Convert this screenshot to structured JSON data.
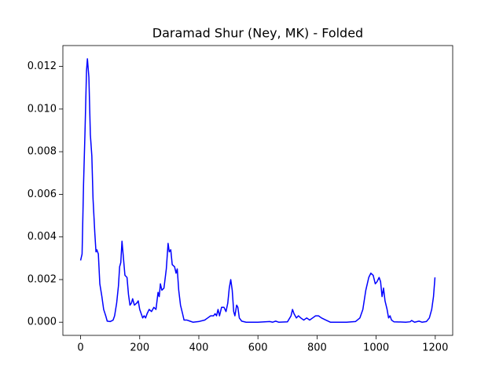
{
  "chart_data": {
    "type": "line",
    "title": "Daramad Shur (Ney, MK) - Folded",
    "color": "#0000ff",
    "x": [
      0,
      5,
      10,
      15,
      20,
      23,
      28,
      33,
      38,
      42,
      48,
      52,
      55,
      60,
      65,
      72,
      78,
      85,
      90,
      100,
      110,
      115,
      122,
      128,
      132,
      136,
      140,
      145,
      150,
      157,
      162,
      167,
      172,
      176,
      182,
      190,
      195,
      200,
      205,
      210,
      215,
      220,
      225,
      232,
      240,
      248,
      255,
      262,
      266,
      270,
      275,
      282,
      290,
      296,
      300,
      305,
      310,
      318,
      323,
      327,
      332,
      338,
      345,
      350,
      360,
      370,
      380,
      400,
      420,
      430,
      440,
      450,
      455,
      460,
      465,
      470,
      477,
      485,
      492,
      498,
      503,
      508,
      513,
      518,
      522,
      528,
      532,
      537,
      545,
      560,
      600,
      640,
      650,
      660,
      670,
      700,
      712,
      717,
      722,
      730,
      737,
      745,
      755,
      765,
      775,
      785,
      795,
      805,
      815,
      830,
      845,
      900,
      930,
      945,
      955,
      965,
      975,
      982,
      990,
      997,
      1003,
      1010,
      1015,
      1020,
      1025,
      1030,
      1037,
      1042,
      1047,
      1052,
      1060,
      1100,
      1115,
      1120,
      1130,
      1145,
      1155,
      1170,
      1180,
      1188,
      1194,
      1199
    ],
    "values": [
      0.0029,
      0.0032,
      0.0065,
      0.009,
      0.0118,
      0.01236,
      0.0115,
      0.0088,
      0.0078,
      0.0058,
      0.0042,
      0.0033,
      0.0034,
      0.0032,
      0.0018,
      0.0012,
      0.0006,
      0.0003,
      5e-05,
      3e-05,
      0.0001,
      0.0003,
      0.0009,
      0.0017,
      0.0026,
      0.0028,
      0.0038,
      0.003,
      0.0022,
      0.0021,
      0.0013,
      0.0008,
      0.0009,
      0.0011,
      0.0008,
      0.0009,
      0.001,
      0.0006,
      0.0004,
      0.0002,
      0.0003,
      0.0002,
      0.0004,
      0.0006,
      0.0005,
      0.0007,
      0.0006,
      0.0014,
      0.0012,
      0.0018,
      0.0015,
      0.0016,
      0.0025,
      0.0037,
      0.0033,
      0.0034,
      0.0027,
      0.0026,
      0.0023,
      0.0025,
      0.0015,
      0.0008,
      0.0004,
      0.0001,
      0.0001,
      5e-05,
      0,
      3e-05,
      0.0001,
      0.0002,
      0.0003,
      0.0003,
      0.0004,
      0.0003,
      0.0006,
      0.0003,
      0.0007,
      0.0007,
      0.0005,
      0.0009,
      0.0016,
      0.002,
      0.0015,
      0.0005,
      0.0003,
      0.0008,
      0.0007,
      0.0002,
      5e-05,
      0,
      0,
      3e-05,
      0,
      5e-05,
      0,
      2e-05,
      0.0003,
      0.0006,
      0.0004,
      0.0002,
      0.0003,
      0.0002,
      0.0001,
      0.0002,
      0.0001,
      0.0002,
      0.0003,
      0.0003,
      0.0002,
      0.0001,
      0,
      0,
      3e-05,
      0.0002,
      0.0006,
      0.0015,
      0.0021,
      0.0023,
      0.0022,
      0.0018,
      0.0019,
      0.0021,
      0.0019,
      0.0012,
      0.0016,
      0.001,
      0.0006,
      0.0002,
      0.0003,
      0.0001,
      2e-05,
      0,
      2e-05,
      8e-05,
      0,
      5e-05,
      0,
      3e-05,
      0.0002,
      0.0006,
      0.0012,
      0.0021
    ],
    "xlim": [
      -60,
      1259
    ],
    "ylim": [
      -0.000618,
      0.01298
    ],
    "xticks": [
      0,
      200,
      400,
      600,
      800,
      1000,
      1200
    ],
    "yticks": [
      {
        "value": 0,
        "label": "0.000"
      },
      {
        "value": 0.002,
        "label": "0.002"
      },
      {
        "value": 0.004,
        "label": "0.004"
      },
      {
        "value": 0.006,
        "label": "0.006"
      },
      {
        "value": 0.008,
        "label": "0.008"
      },
      {
        "value": 0.01,
        "label": "0.010"
      },
      {
        "value": 0.012,
        "label": "0.012"
      }
    ]
  }
}
